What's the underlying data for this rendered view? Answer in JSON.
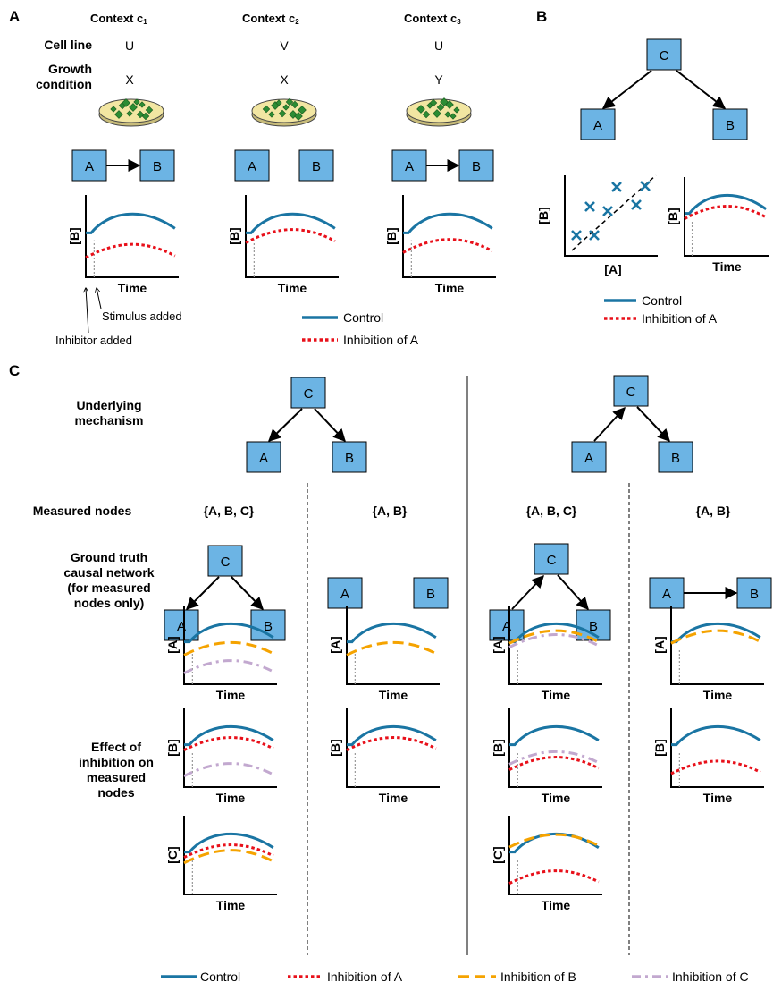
{
  "panels": {
    "a": "A",
    "b": "B",
    "c": "C"
  },
  "contexts": [
    {
      "prefix": "Context c",
      "sub": "1",
      "cell": "U",
      "growth": "X"
    },
    {
      "prefix": "Context c",
      "sub": "2",
      "cell": "V",
      "growth": "X"
    },
    {
      "prefix": "Context c",
      "sub": "3",
      "cell": "U",
      "growth": "Y"
    }
  ],
  "row_labels": {
    "cell_line": "Cell line",
    "growth_1": "Growth",
    "growth_2": "condition",
    "underlying_1": "Underlying",
    "underlying_2": "mechanism",
    "measured": "Measured nodes",
    "gt_1": "Ground truth",
    "gt_2": "causal network",
    "gt_3": "(for measured",
    "gt_4": "nodes only)",
    "eff_1": "Effect of",
    "eff_2": "inhibition on",
    "eff_3": "measured",
    "eff_4": "nodes"
  },
  "nodes": {
    "a": "A",
    "b": "B",
    "c": "C"
  },
  "axes": {
    "time": "Time",
    "b": "[B]",
    "a": "[A]",
    "c": "[C]"
  },
  "annotations": {
    "stimulus": "Stimulus added",
    "inhibitor": "Inhibitor added"
  },
  "measured_sets": [
    "{A, B, C}",
    "{A, B}",
    "{A, B, C}",
    "{A, B}"
  ],
  "legend": {
    "control": "Control",
    "inh_a": "Inhibition of A",
    "inh_b": "Inhibition of B",
    "inh_c": "Inhibition of C"
  },
  "colors": {
    "control": "#1a75a3",
    "inh_a": "#e8101a",
    "inh_b": "#f5a300",
    "inh_c": "#c2a8cf",
    "node_fill": "#6cb4e4",
    "dish": "#f2e6a2",
    "cells": "#2c8c33"
  }
}
